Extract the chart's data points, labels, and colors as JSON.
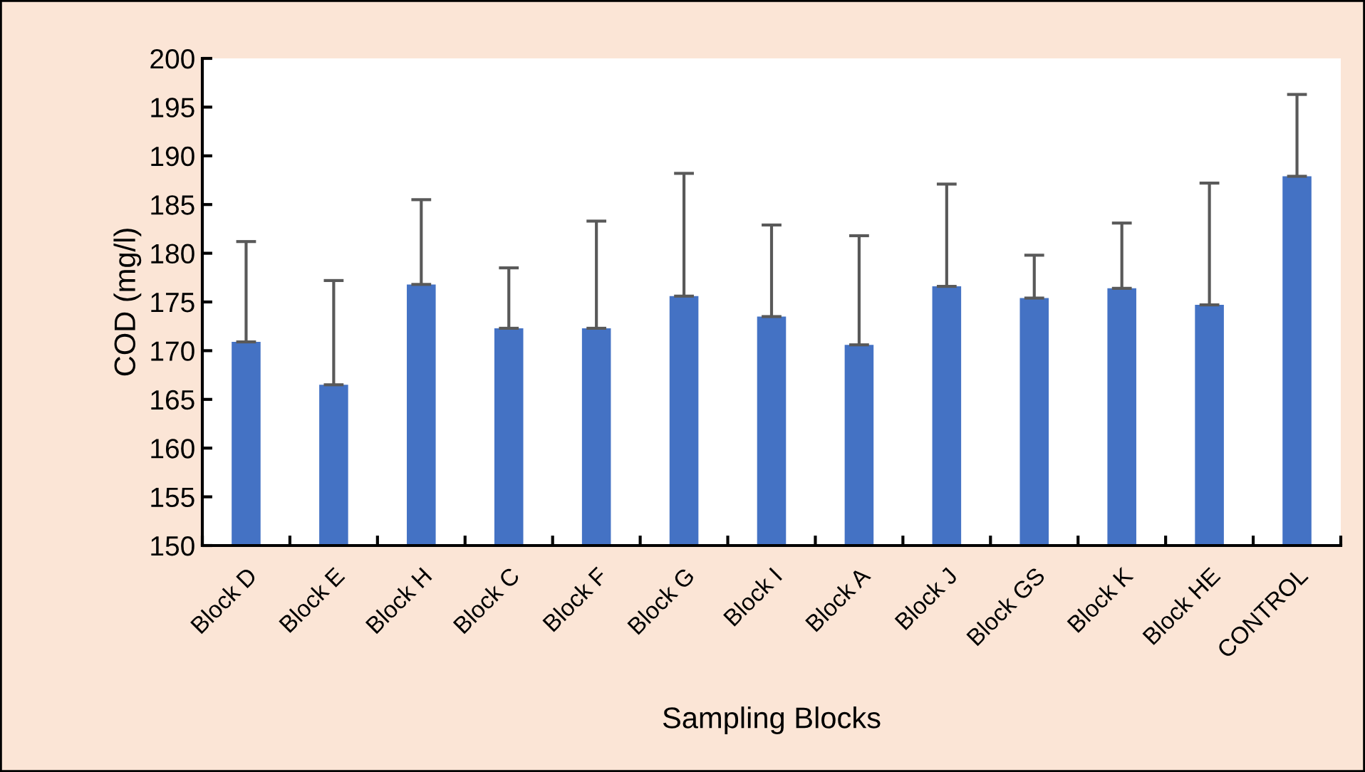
{
  "chart_data": {
    "type": "bar",
    "xlabel": "Sampling Blocks",
    "ylabel": "COD (mg/l)",
    "categories": [
      "Block D",
      "Block E",
      "Block H",
      "Block C",
      "Block F",
      "Block G",
      "Block I",
      "Block A",
      "Block J",
      "Block GS",
      "Block K",
      "Block HE",
      "CONTROL"
    ],
    "values": [
      170.9,
      166.5,
      176.8,
      172.3,
      172.3,
      175.6,
      173.5,
      170.6,
      176.6,
      175.4,
      176.4,
      174.7,
      187.9
    ],
    "errors": [
      [
        170.9,
        181.2
      ],
      [
        166.5,
        177.2
      ],
      [
        176.8,
        185.5
      ],
      [
        172.3,
        178.5
      ],
      [
        172.3,
        183.3
      ],
      [
        175.6,
        188.2
      ],
      [
        173.5,
        182.9
      ],
      [
        170.6,
        181.8
      ],
      [
        176.6,
        187.1
      ],
      [
        175.4,
        179.8
      ],
      [
        176.4,
        183.1
      ],
      [
        174.7,
        187.2
      ],
      [
        187.9,
        196.3
      ]
    ],
    "color": "#4472c4",
    "ylim": [
      150,
      200
    ],
    "yticks": [
      150,
      155,
      160,
      165,
      170,
      175,
      180,
      185,
      190,
      195,
      200
    ],
    "grid": false,
    "legend": false
  }
}
